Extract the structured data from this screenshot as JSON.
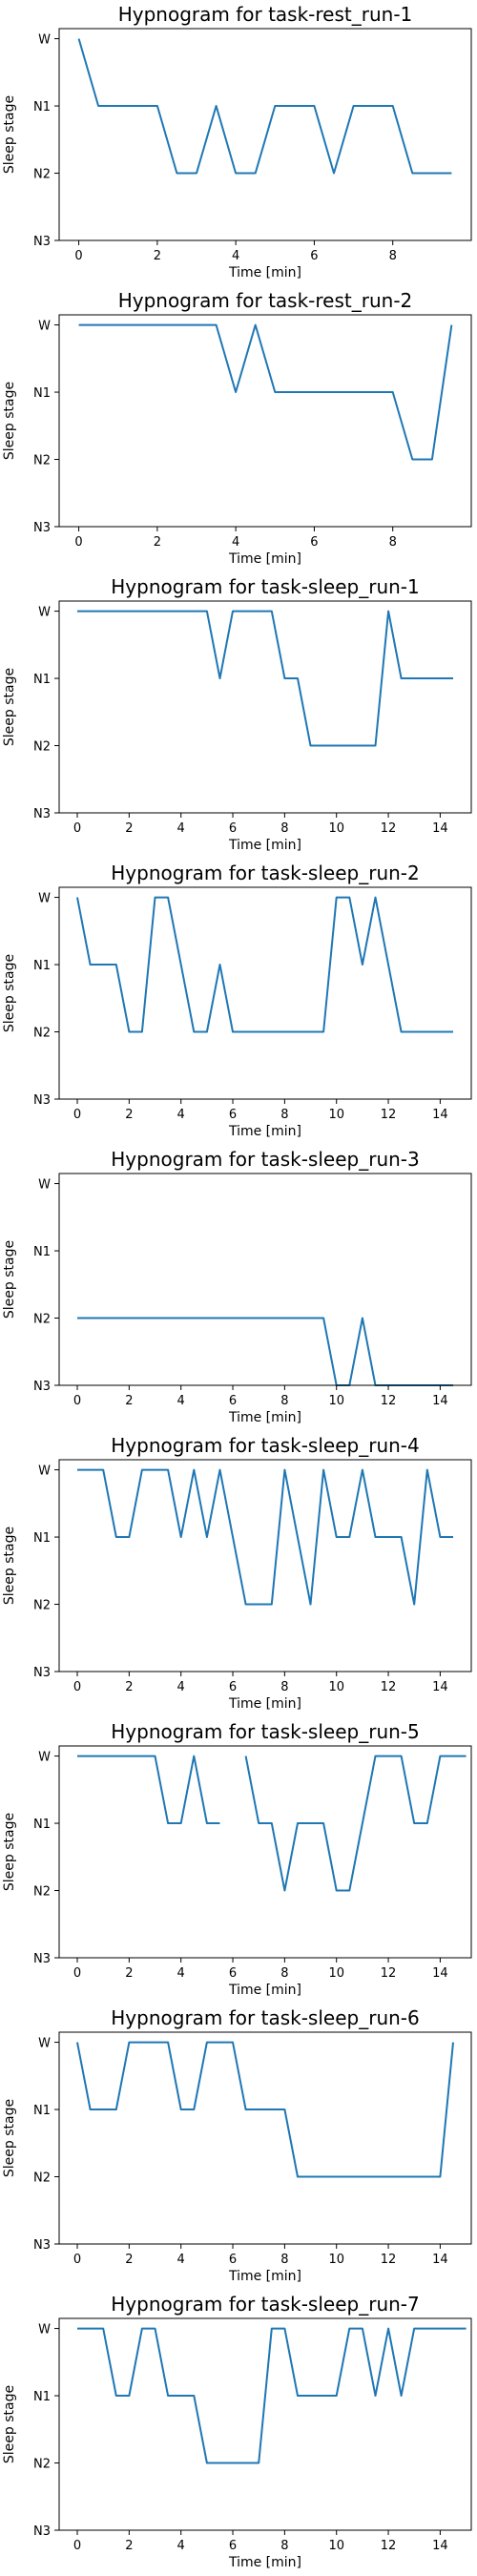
{
  "chart_data": [
    {
      "type": "line",
      "title": "Hypnogram for task-rest_run-1",
      "xlabel": "Time [min]",
      "ylabel": "Sleep stage",
      "xlim": [
        -0.5,
        10
      ],
      "xticks": [
        0,
        2,
        4,
        6,
        8
      ],
      "yticks": [
        "W",
        "N1",
        "N2",
        "N3"
      ],
      "grid": false,
      "color": "#1f77b4",
      "segments": [
        [
          [
            0,
            0
          ],
          [
            0.5,
            1
          ],
          [
            2,
            1
          ],
          [
            2.5,
            2
          ],
          [
            3,
            2
          ],
          [
            3.5,
            1
          ],
          [
            4,
            2
          ],
          [
            4.5,
            2
          ],
          [
            5,
            1
          ],
          [
            6,
            1
          ],
          [
            6.5,
            2
          ],
          [
            7,
            1
          ],
          [
            8,
            1
          ],
          [
            8.5,
            2
          ],
          [
            9.5,
            2
          ]
        ]
      ]
    },
    {
      "type": "line",
      "title": "Hypnogram for task-rest_run-2",
      "xlabel": "Time [min]",
      "ylabel": "Sleep stage",
      "xlim": [
        -0.5,
        10
      ],
      "xticks": [
        0,
        2,
        4,
        6,
        8
      ],
      "yticks": [
        "W",
        "N1",
        "N2",
        "N3"
      ],
      "grid": false,
      "color": "#1f77b4",
      "segments": [
        [
          [
            0,
            0
          ],
          [
            3.5,
            0
          ],
          [
            4,
            1
          ],
          [
            4.5,
            0
          ],
          [
            5,
            1
          ],
          [
            8,
            1
          ],
          [
            8.5,
            2
          ],
          [
            9,
            2
          ],
          [
            9.5,
            0
          ]
        ]
      ]
    },
    {
      "type": "line",
      "title": "Hypnogram for task-sleep_run-1",
      "xlabel": "Time [min]",
      "ylabel": "Sleep stage",
      "xlim": [
        -0.7,
        15.2
      ],
      "xticks": [
        0,
        2,
        4,
        6,
        8,
        10,
        12,
        14
      ],
      "yticks": [
        "W",
        "N1",
        "N2",
        "N3"
      ],
      "grid": false,
      "color": "#1f77b4",
      "segments": [
        [
          [
            0,
            0
          ],
          [
            5,
            0
          ],
          [
            5.5,
            1
          ],
          [
            6,
            0
          ],
          [
            7.5,
            0
          ],
          [
            8,
            1
          ],
          [
            8.5,
            1
          ],
          [
            9,
            2
          ],
          [
            11.5,
            2
          ],
          [
            12,
            0
          ],
          [
            12.5,
            1
          ],
          [
            14.5,
            1
          ]
        ]
      ]
    },
    {
      "type": "line",
      "title": "Hypnogram for task-sleep_run-2",
      "xlabel": "Time [min]",
      "ylabel": "Sleep stage",
      "xlim": [
        -0.7,
        15.2
      ],
      "xticks": [
        0,
        2,
        4,
        6,
        8,
        10,
        12,
        14
      ],
      "yticks": [
        "W",
        "N1",
        "N2",
        "N3"
      ],
      "grid": false,
      "color": "#1f77b4",
      "segments": [
        [
          [
            0,
            0
          ],
          [
            0.5,
            1
          ],
          [
            1.5,
            1
          ],
          [
            2,
            2
          ],
          [
            2.5,
            2
          ],
          [
            3,
            0
          ],
          [
            3.5,
            0
          ],
          [
            4.5,
            2
          ],
          [
            5,
            2
          ],
          [
            5.5,
            1
          ],
          [
            6,
            2
          ],
          [
            9.5,
            2
          ],
          [
            10,
            0
          ],
          [
            10.5,
            0
          ],
          [
            11,
            1
          ],
          [
            11.5,
            0
          ],
          [
            12.5,
            2
          ],
          [
            14.5,
            2
          ]
        ]
      ]
    },
    {
      "type": "line",
      "title": "Hypnogram for task-sleep_run-3",
      "xlabel": "Time [min]",
      "ylabel": "Sleep stage",
      "xlim": [
        -0.7,
        15.2
      ],
      "xticks": [
        0,
        2,
        4,
        6,
        8,
        10,
        12,
        14
      ],
      "yticks": [
        "W",
        "N1",
        "N2",
        "N3"
      ],
      "grid": false,
      "color": "#1f77b4",
      "segments": [
        [
          [
            0,
            2
          ],
          [
            9.5,
            2
          ],
          [
            10,
            3
          ],
          [
            10.5,
            3
          ],
          [
            11,
            2
          ],
          [
            11.5,
            3
          ],
          [
            14.5,
            3
          ]
        ]
      ]
    },
    {
      "type": "line",
      "title": "Hypnogram for task-sleep_run-4",
      "xlabel": "Time [min]",
      "ylabel": "Sleep stage",
      "xlim": [
        -0.7,
        15.2
      ],
      "xticks": [
        0,
        2,
        4,
        6,
        8,
        10,
        12,
        14
      ],
      "yticks": [
        "W",
        "N1",
        "N2",
        "N3"
      ],
      "grid": false,
      "color": "#1f77b4",
      "segments": [
        [
          [
            0,
            0
          ],
          [
            1,
            0
          ],
          [
            1.5,
            1
          ],
          [
            2,
            1
          ],
          [
            2.5,
            0
          ],
          [
            3.5,
            0
          ],
          [
            4,
            1
          ],
          [
            4.5,
            0
          ],
          [
            5,
            1
          ],
          [
            5.5,
            0
          ],
          [
            6.5,
            2
          ],
          [
            7.5,
            2
          ],
          [
            8,
            0
          ],
          [
            9,
            2
          ],
          [
            9.5,
            0
          ],
          [
            10,
            1
          ],
          [
            10.5,
            1
          ],
          [
            11,
            0
          ],
          [
            11.5,
            1
          ],
          [
            12.5,
            1
          ],
          [
            13,
            2
          ],
          [
            13.5,
            0
          ],
          [
            14,
            1
          ],
          [
            14.5,
            1
          ]
        ]
      ]
    },
    {
      "type": "line",
      "title": "Hypnogram for task-sleep_run-5",
      "xlabel": "Time [min]",
      "ylabel": "Sleep stage",
      "xlim": [
        -0.7,
        15.2
      ],
      "xticks": [
        0,
        2,
        4,
        6,
        8,
        10,
        12,
        14
      ],
      "yticks": [
        "W",
        "N1",
        "N2",
        "N3"
      ],
      "grid": false,
      "color": "#1f77b4",
      "segments": [
        [
          [
            0,
            0
          ],
          [
            3,
            0
          ],
          [
            3.5,
            1
          ],
          [
            4,
            1
          ],
          [
            4.5,
            0
          ],
          [
            5,
            1
          ],
          [
            5.5,
            1
          ]
        ],
        [
          [
            6.5,
            0
          ],
          [
            7,
            1
          ],
          [
            7.5,
            1
          ],
          [
            8,
            2
          ],
          [
            8.5,
            1
          ],
          [
            9.5,
            1
          ],
          [
            10,
            2
          ],
          [
            10.5,
            2
          ],
          [
            11.5,
            0
          ],
          [
            12.5,
            0
          ],
          [
            13,
            1
          ],
          [
            13.5,
            1
          ],
          [
            14,
            0
          ],
          [
            15,
            0
          ]
        ]
      ]
    },
    {
      "type": "line",
      "title": "Hypnogram for task-sleep_run-6",
      "xlabel": "Time [min]",
      "ylabel": "Sleep stage",
      "xlim": [
        -0.7,
        15.2
      ],
      "xticks": [
        0,
        2,
        4,
        6,
        8,
        10,
        12,
        14
      ],
      "yticks": [
        "W",
        "N1",
        "N2",
        "N3"
      ],
      "grid": false,
      "color": "#1f77b4",
      "segments": [
        [
          [
            0,
            0
          ],
          [
            0.5,
            1
          ],
          [
            1.5,
            1
          ],
          [
            2,
            0
          ],
          [
            3.5,
            0
          ],
          [
            4,
            1
          ],
          [
            4.5,
            1
          ],
          [
            5,
            0
          ],
          [
            6,
            0
          ],
          [
            6.5,
            1
          ],
          [
            8,
            1
          ],
          [
            8.5,
            2
          ],
          [
            14,
            2
          ],
          [
            14.5,
            0
          ]
        ]
      ]
    },
    {
      "type": "line",
      "title": "Hypnogram for task-sleep_run-7",
      "xlabel": "Time [min]",
      "ylabel": "Sleep stage",
      "xlim": [
        -0.7,
        15.2
      ],
      "xticks": [
        0,
        2,
        4,
        6,
        8,
        10,
        12,
        14
      ],
      "yticks": [
        "W",
        "N1",
        "N2",
        "N3"
      ],
      "grid": false,
      "color": "#1f77b4",
      "segments": [
        [
          [
            0,
            0
          ],
          [
            1,
            0
          ],
          [
            1.5,
            1
          ],
          [
            2,
            1
          ],
          [
            2.5,
            0
          ],
          [
            3,
            0
          ],
          [
            3.5,
            1
          ],
          [
            4.5,
            1
          ],
          [
            5,
            2
          ],
          [
            7,
            2
          ],
          [
            7.5,
            0
          ],
          [
            8,
            0
          ],
          [
            8.5,
            1
          ],
          [
            10,
            1
          ],
          [
            10.5,
            0
          ],
          [
            11,
            0
          ],
          [
            11.5,
            1
          ],
          [
            12,
            0
          ],
          [
            12.5,
            1
          ],
          [
            13,
            0
          ],
          [
            15,
            0
          ]
        ]
      ]
    }
  ]
}
